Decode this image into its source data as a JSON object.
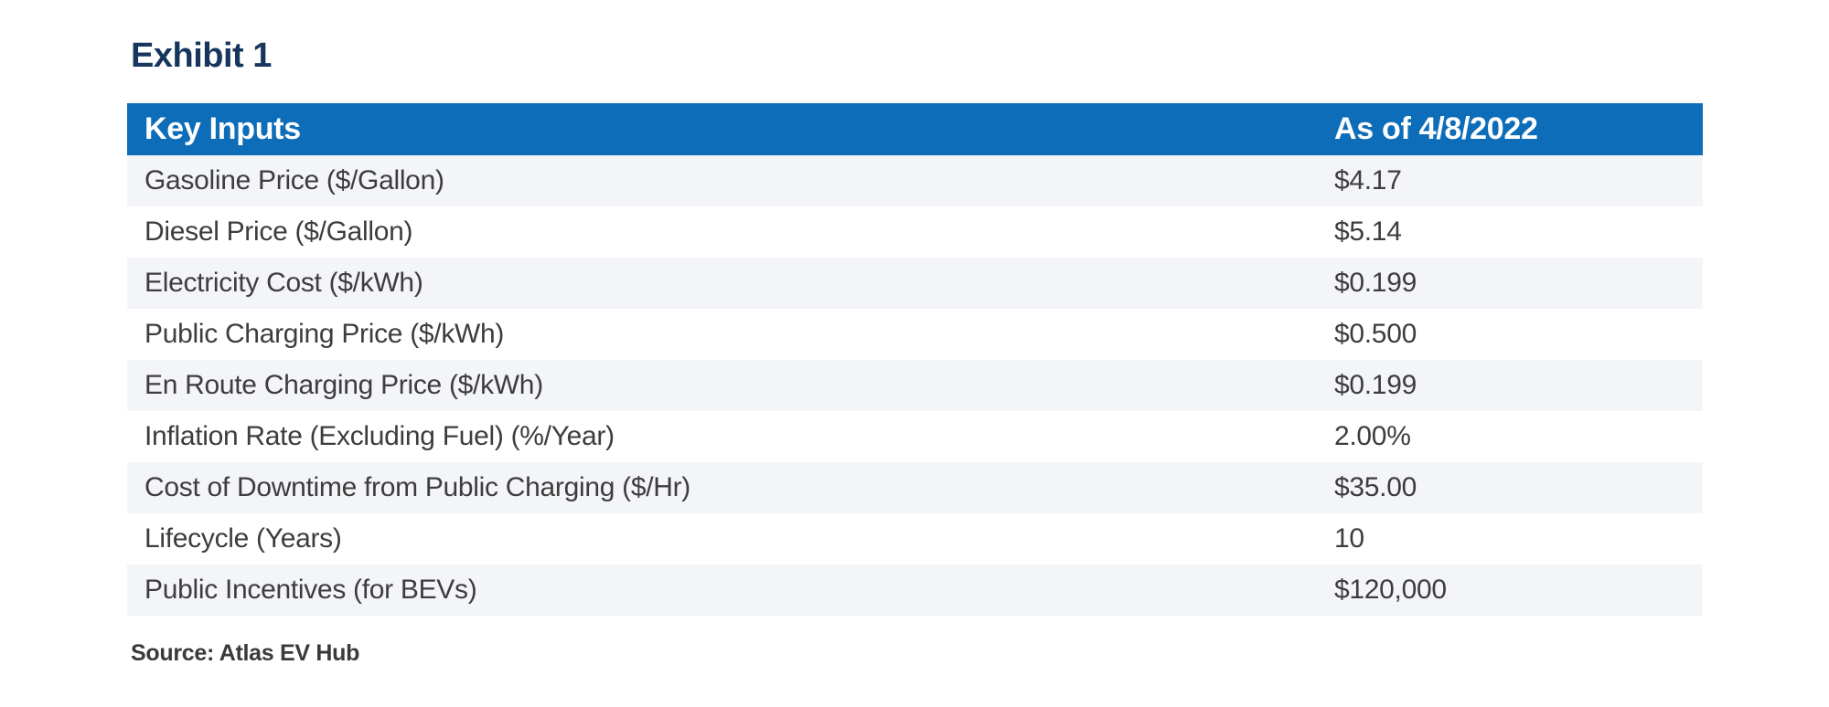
{
  "page": {
    "exhibit_label": "Exhibit 1",
    "source_note": "Source: Atlas EV Hub"
  },
  "colors": {
    "header_bg": "#0d6db8",
    "title_navy": "#17365d",
    "row_alt_bg": "#f3f5f8",
    "body_text": "#3d3d3d",
    "header_text": "#ffffff"
  },
  "table": {
    "columns": [
      {
        "label": "Key Inputs"
      },
      {
        "label": "As of 4/8/2022"
      }
    ],
    "rows": [
      {
        "label": "Gasoline Price ($/Gallon)",
        "value": "$4.17"
      },
      {
        "label": "Diesel Price ($/Gallon)",
        "value": "$5.14"
      },
      {
        "label": "Electricity Cost ($/kWh)",
        "value": "$0.199"
      },
      {
        "label": "Public Charging Price ($/kWh)",
        "value": "$0.500"
      },
      {
        "label": "En Route Charging Price ($/kWh)",
        "value": "$0.199"
      },
      {
        "label": "Inflation Rate (Excluding Fuel) (%/Year)",
        "value": "2.00%"
      },
      {
        "label": "Cost of Downtime from Public Charging ($/Hr)",
        "value": "$35.00"
      },
      {
        "label": "Lifecycle (Years)",
        "value": "10"
      },
      {
        "label": "Public Incentives (for BEVs)",
        "value": "$120,000"
      }
    ]
  }
}
